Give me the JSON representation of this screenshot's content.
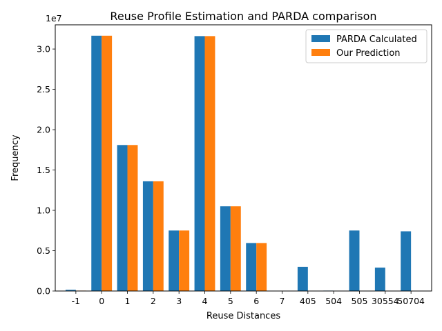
{
  "chart_data": {
    "type": "bar",
    "title": "Reuse Profile Estimation and PARDA comparison",
    "xlabel": "Reuse Distances",
    "ylabel": "Frequency",
    "y_offset_label": "1e7",
    "categories": [
      "-1",
      "0",
      "1",
      "2",
      "3",
      "4",
      "5",
      "6",
      "7",
      "405",
      "504",
      "505",
      "30554",
      "50704"
    ],
    "series": [
      {
        "name": "PARDA Calculated",
        "color": "#1f77b4",
        "values": [
          150000,
          31650000,
          18100000,
          13600000,
          7500000,
          31600000,
          10500000,
          5950000,
          0,
          3000000,
          50000,
          7500000,
          2900000,
          7400000
        ]
      },
      {
        "name": "Our Prediction",
        "color": "#ff7f0e",
        "values": [
          50000,
          31650000,
          18100000,
          13600000,
          7500000,
          31600000,
          10500000,
          5950000,
          0,
          0,
          0,
          0,
          0,
          0
        ]
      }
    ],
    "ylim": [
      0,
      33000000
    ],
    "yticks": [
      0,
      5000000,
      10000000,
      15000000,
      20000000,
      25000000,
      30000000
    ],
    "ytick_labels": [
      "0.0",
      "0.5",
      "1.0",
      "1.5",
      "2.0",
      "2.5",
      "3.0"
    ],
    "grid": false,
    "legend_position": "top-right"
  }
}
